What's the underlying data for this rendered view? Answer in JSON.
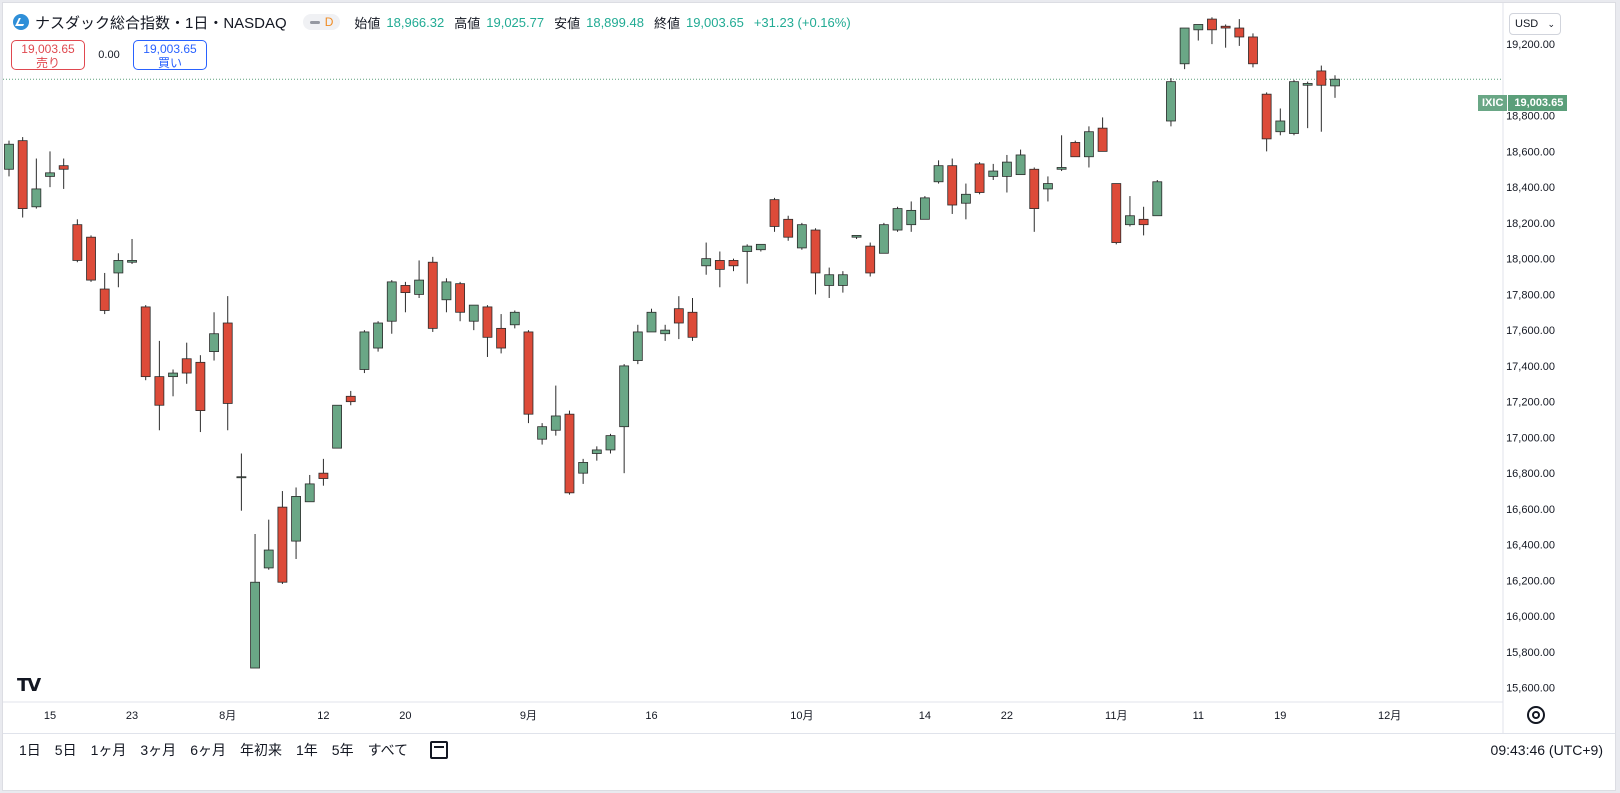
{
  "header": {
    "title": "ナスダック総合指数・1日・NASDAQ",
    "interval_badge": "D",
    "ohlc": {
      "open_label": "始値",
      "open": "18,966.32",
      "high_label": "高値",
      "high": "19,025.77",
      "low_label": "安値",
      "low": "18,899.48",
      "close_label": "終値",
      "close": "19,003.65",
      "change": "+31.23 (+0.16%)"
    }
  },
  "trade": {
    "sell_price": "19,003.65",
    "sell_label": "売り",
    "spread": "0.00",
    "buy_price": "19,003.65",
    "buy_label": "買い"
  },
  "currency": "USD",
  "last_price_tag": {
    "symbol": "IXIC",
    "price": "19,003.65"
  },
  "time_ranges": [
    "1日",
    "5日",
    "1ヶ月",
    "3ヶ月",
    "6ヶ月",
    "年初来",
    "1年",
    "5年",
    "すべて"
  ],
  "timezone_clock": "09:43:46 (UTC+9)",
  "colors": {
    "up": "#6aa786",
    "down": "#dd4b39",
    "accent": "#2962ff",
    "price_line": "#5b9f7a"
  },
  "chart_data": {
    "type": "candlestick",
    "yaxis": {
      "range": [
        15520,
        19430
      ],
      "ticks": [
        15600,
        15800,
        16000,
        16200,
        16400,
        16600,
        16800,
        17000,
        17200,
        17400,
        17600,
        17800,
        18000,
        18200,
        18400,
        18600,
        18800,
        19200
      ],
      "tick_labels": [
        "15,600.00",
        "15,800.00",
        "16,000.00",
        "16,200.00",
        "16,400.00",
        "16,600.00",
        "16,800.00",
        "17,000.00",
        "17,200.00",
        "17,400.00",
        "17,600.00",
        "17,800.00",
        "18,000.00",
        "18,200.00",
        "18,400.00",
        "18,600.00",
        "18,800.00",
        "19,200.00"
      ]
    },
    "xaxis": {
      "labels": [
        {
          "text": "15",
          "index": 3
        },
        {
          "text": "23",
          "index": 9
        },
        {
          "text": "8月",
          "index": 16
        },
        {
          "text": "12",
          "index": 23
        },
        {
          "text": "20",
          "index": 29
        },
        {
          "text": "9月",
          "index": 38
        },
        {
          "text": "16",
          "index": 47
        },
        {
          "text": "10月",
          "index": 58
        },
        {
          "text": "14",
          "index": 67
        },
        {
          "text": "22",
          "index": 73
        },
        {
          "text": "11月",
          "index": 81
        },
        {
          "text": "11",
          "index": 87
        },
        {
          "text": "19",
          "index": 93
        },
        {
          "text": "12月",
          "index": 101
        }
      ],
      "slot_count": 109
    },
    "last_price": 19003.65,
    "candles": [
      {
        "o": 18500,
        "h": 18660,
        "l": 18460,
        "c": 18640
      },
      {
        "o": 18660,
        "h": 18680,
        "l": 18230,
        "c": 18280
      },
      {
        "o": 18290,
        "h": 18560,
        "l": 18280,
        "c": 18390
      },
      {
        "o": 18460,
        "h": 18600,
        "l": 18400,
        "c": 18480
      },
      {
        "o": 18520,
        "h": 18560,
        "l": 18390,
        "c": 18500
      },
      {
        "o": 18190,
        "h": 18220,
        "l": 17980,
        "c": 17990
      },
      {
        "o": 18120,
        "h": 18130,
        "l": 17870,
        "c": 17880
      },
      {
        "o": 17830,
        "h": 17920,
        "l": 17690,
        "c": 17710
      },
      {
        "o": 17920,
        "h": 18030,
        "l": 17840,
        "c": 17990
      },
      {
        "o": 17980,
        "h": 18110,
        "l": 17970,
        "c": 17990
      },
      {
        "o": 17730,
        "h": 17740,
        "l": 17320,
        "c": 17340
      },
      {
        "o": 17340,
        "h": 17540,
        "l": 17040,
        "c": 17180
      },
      {
        "o": 17340,
        "h": 17380,
        "l": 17230,
        "c": 17360
      },
      {
        "o": 17440,
        "h": 17530,
        "l": 17300,
        "c": 17360
      },
      {
        "o": 17420,
        "h": 17460,
        "l": 17030,
        "c": 17150
      },
      {
        "o": 17480,
        "h": 17700,
        "l": 17430,
        "c": 17580
      },
      {
        "o": 17640,
        "h": 17790,
        "l": 17040,
        "c": 17190
      },
      {
        "o": 16780,
        "h": 16910,
        "l": 16590,
        "c": 16780
      },
      {
        "o": 15710,
        "h": 16460,
        "l": 15710,
        "c": 16190
      },
      {
        "o": 16270,
        "h": 16540,
        "l": 16260,
        "c": 16370
      },
      {
        "o": 16610,
        "h": 16700,
        "l": 16180,
        "c": 16190
      },
      {
        "o": 16420,
        "h": 16720,
        "l": 16320,
        "c": 16670
      },
      {
        "o": 16640,
        "h": 16790,
        "l": 16640,
        "c": 16740
      },
      {
        "o": 16800,
        "h": 16880,
        "l": 16730,
        "c": 16770
      },
      {
        "o": 16940,
        "h": 17180,
        "l": 16940,
        "c": 17180
      },
      {
        "o": 17230,
        "h": 17260,
        "l": 17180,
        "c": 17200
      },
      {
        "o": 17380,
        "h": 17600,
        "l": 17360,
        "c": 17590
      },
      {
        "o": 17500,
        "h": 17650,
        "l": 17480,
        "c": 17640
      },
      {
        "o": 17650,
        "h": 17880,
        "l": 17580,
        "c": 17870
      },
      {
        "o": 17850,
        "h": 17870,
        "l": 17700,
        "c": 17810
      },
      {
        "o": 17800,
        "h": 17990,
        "l": 17780,
        "c": 17880
      },
      {
        "o": 17980,
        "h": 18010,
        "l": 17590,
        "c": 17610
      },
      {
        "o": 17770,
        "h": 17890,
        "l": 17700,
        "c": 17870
      },
      {
        "o": 17860,
        "h": 17870,
        "l": 17650,
        "c": 17700
      },
      {
        "o": 17650,
        "h": 17710,
        "l": 17600,
        "c": 17740
      },
      {
        "o": 17730,
        "h": 17740,
        "l": 17450,
        "c": 17560
      },
      {
        "o": 17610,
        "h": 17690,
        "l": 17470,
        "c": 17500
      },
      {
        "o": 17630,
        "h": 17710,
        "l": 17610,
        "c": 17700
      },
      {
        "o": 17590,
        "h": 17600,
        "l": 17080,
        "c": 17130
      },
      {
        "o": 16990,
        "h": 17080,
        "l": 16960,
        "c": 17060
      },
      {
        "o": 17040,
        "h": 17290,
        "l": 17010,
        "c": 17120
      },
      {
        "o": 17130,
        "h": 17150,
        "l": 16680,
        "c": 16690
      },
      {
        "o": 16800,
        "h": 16880,
        "l": 16740,
        "c": 16860
      },
      {
        "o": 16910,
        "h": 16950,
        "l": 16870,
        "c": 16930
      },
      {
        "o": 16930,
        "h": 17020,
        "l": 16910,
        "c": 17010
      },
      {
        "o": 17060,
        "h": 17410,
        "l": 16800,
        "c": 17400
      },
      {
        "o": 17430,
        "h": 17630,
        "l": 17410,
        "c": 17590
      },
      {
        "o": 17590,
        "h": 17720,
        "l": 17590,
        "c": 17700
      },
      {
        "o": 17580,
        "h": 17630,
        "l": 17540,
        "c": 17600
      },
      {
        "o": 17720,
        "h": 17790,
        "l": 17550,
        "c": 17640
      },
      {
        "o": 17700,
        "h": 17780,
        "l": 17540,
        "c": 17560
      },
      {
        "o": 17960,
        "h": 18090,
        "l": 17910,
        "c": 18000
      },
      {
        "o": 17990,
        "h": 18040,
        "l": 17840,
        "c": 17940
      },
      {
        "o": 17990,
        "h": 18000,
        "l": 17930,
        "c": 17960
      },
      {
        "o": 18040,
        "h": 18080,
        "l": 17860,
        "c": 18070
      },
      {
        "o": 18050,
        "h": 18070,
        "l": 18040,
        "c": 18080
      },
      {
        "o": 18330,
        "h": 18340,
        "l": 18150,
        "c": 18180
      },
      {
        "o": 18220,
        "h": 18240,
        "l": 18100,
        "c": 18120
      },
      {
        "o": 18060,
        "h": 18200,
        "l": 18050,
        "c": 18190
      },
      {
        "o": 18160,
        "h": 18170,
        "l": 17800,
        "c": 17920
      },
      {
        "o": 17850,
        "h": 17950,
        "l": 17780,
        "c": 17910
      },
      {
        "o": 17850,
        "h": 17930,
        "l": 17810,
        "c": 17910
      },
      {
        "o": 18120,
        "h": 18130,
        "l": 18110,
        "c": 18130
      },
      {
        "o": 18070,
        "h": 18090,
        "l": 17900,
        "c": 17920
      },
      {
        "o": 18030,
        "h": 18200,
        "l": 18030,
        "c": 18190
      },
      {
        "o": 18160,
        "h": 18290,
        "l": 18150,
        "c": 18280
      },
      {
        "o": 18190,
        "h": 18320,
        "l": 18150,
        "c": 18270
      },
      {
        "o": 18220,
        "h": 18350,
        "l": 18220,
        "c": 18340
      },
      {
        "o": 18430,
        "h": 18550,
        "l": 18420,
        "c": 18520
      },
      {
        "o": 18520,
        "h": 18560,
        "l": 18250,
        "c": 18300
      },
      {
        "o": 18310,
        "h": 18420,
        "l": 18220,
        "c": 18360
      },
      {
        "o": 18530,
        "h": 18540,
        "l": 18360,
        "c": 18370
      },
      {
        "o": 18460,
        "h": 18530,
        "l": 18440,
        "c": 18490
      },
      {
        "o": 18460,
        "h": 18580,
        "l": 18370,
        "c": 18540
      },
      {
        "o": 18470,
        "h": 18610,
        "l": 18470,
        "c": 18580
      },
      {
        "o": 18500,
        "h": 18510,
        "l": 18150,
        "c": 18280
      },
      {
        "o": 18390,
        "h": 18460,
        "l": 18320,
        "c": 18420
      },
      {
        "o": 18500,
        "h": 18690,
        "l": 18490,
        "c": 18510
      },
      {
        "o": 18650,
        "h": 18660,
        "l": 18570,
        "c": 18570
      },
      {
        "o": 18570,
        "h": 18740,
        "l": 18510,
        "c": 18710
      },
      {
        "o": 18730,
        "h": 18790,
        "l": 18600,
        "c": 18600
      },
      {
        "o": 18420,
        "h": 18420,
        "l": 18080,
        "c": 18090
      },
      {
        "o": 18190,
        "h": 18350,
        "l": 18180,
        "c": 18240
      },
      {
        "o": 18220,
        "h": 18290,
        "l": 18130,
        "c": 18190
      },
      {
        "o": 18240,
        "h": 18440,
        "l": 18240,
        "c": 18430
      },
      {
        "o": 18770,
        "h": 19010,
        "l": 18740,
        "c": 18990
      },
      {
        "o": 19090,
        "h": 19290,
        "l": 19060,
        "c": 19290
      },
      {
        "o": 19280,
        "h": 19300,
        "l": 19220,
        "c": 19310
      },
      {
        "o": 19340,
        "h": 19350,
        "l": 19200,
        "c": 19280
      },
      {
        "o": 19300,
        "h": 19310,
        "l": 19180,
        "c": 19290
      },
      {
        "o": 19290,
        "h": 19340,
        "l": 19190,
        "c": 19240
      },
      {
        "o": 19240,
        "h": 19260,
        "l": 19070,
        "c": 19090
      },
      {
        "o": 18920,
        "h": 18930,
        "l": 18600,
        "c": 18670
      },
      {
        "o": 18710,
        "h": 18840,
        "l": 18690,
        "c": 18770
      },
      {
        "o": 18700,
        "h": 19000,
        "l": 18690,
        "c": 18990
      },
      {
        "o": 18970,
        "h": 18990,
        "l": 18730,
        "c": 18980
      },
      {
        "o": 19050,
        "h": 19080,
        "l": 18710,
        "c": 18970
      },
      {
        "o": 18966.32,
        "h": 19025.77,
        "l": 18899.48,
        "c": 19003.65
      }
    ]
  }
}
